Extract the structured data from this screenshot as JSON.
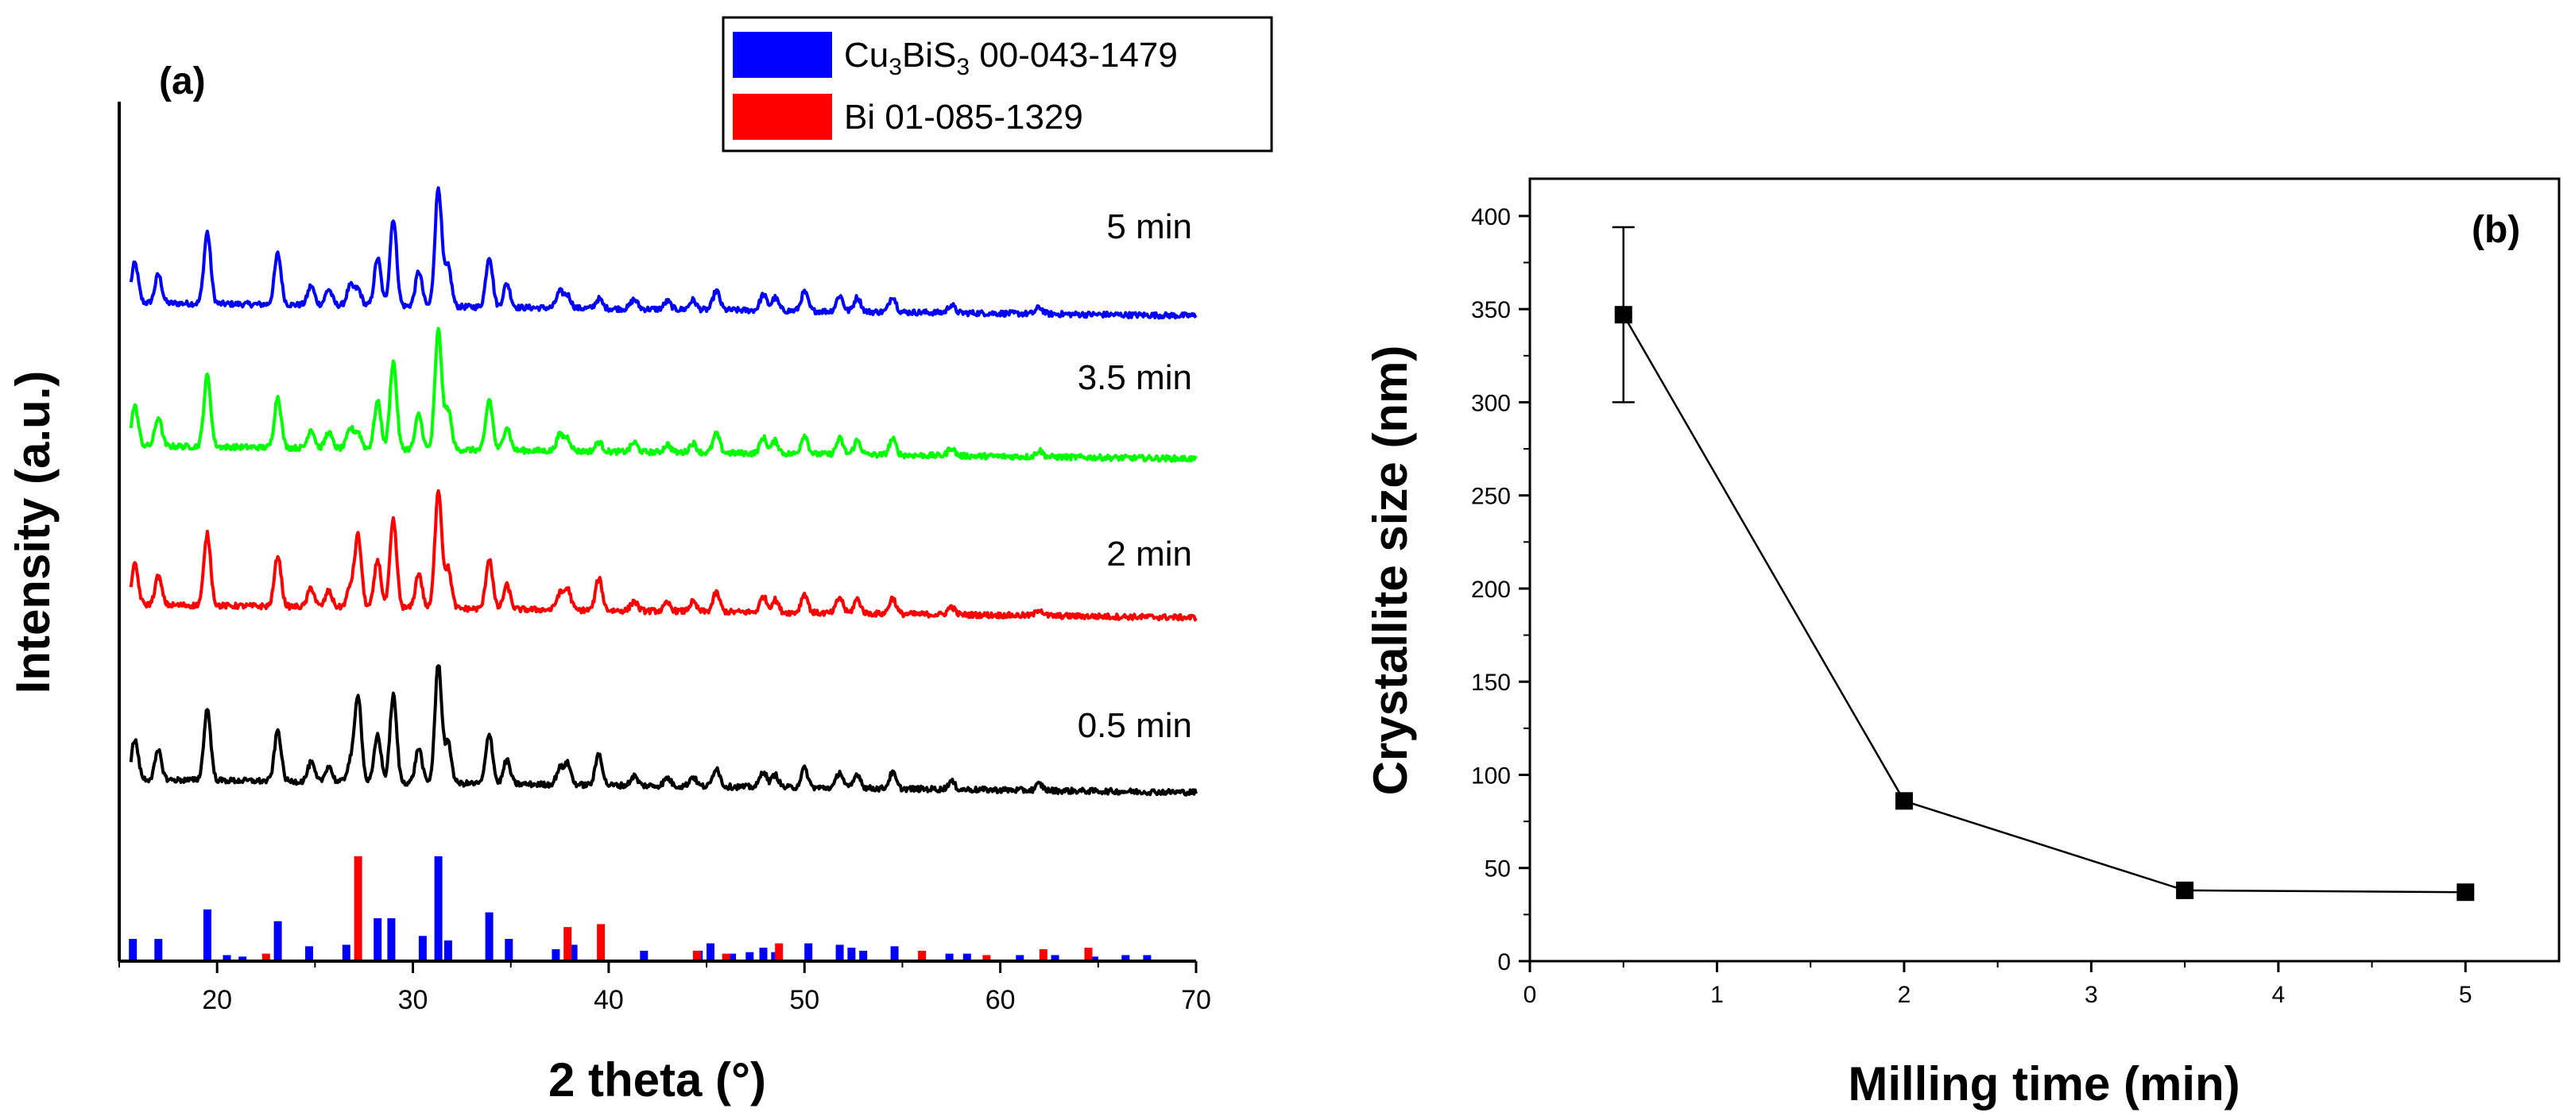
{
  "chart_data": [
    {
      "type": "line",
      "panel_label": "(a)",
      "xlabel": "2 theta (°)",
      "ylabel": "Intensity (a.u.)",
      "xlim": [
        15,
        70
      ],
      "xticks": [
        "20",
        "30",
        "40",
        "50",
        "60",
        "70"
      ],
      "series": [
        {
          "name": "5 min",
          "color": "#0000ff",
          "offset": 3.0
        },
        {
          "name": "3.5 min",
          "color": "#00ff00",
          "offset": 2.1
        },
        {
          "name": "2 min",
          "color": "#ff0000",
          "offset": 1.1
        },
        {
          "name": "0.5 min",
          "color": "#000000",
          "offset": 0.0
        }
      ],
      "peaks": [
        [
          15.8,
          0.25
        ],
        [
          17.0,
          0.18
        ],
        [
          19.5,
          0.45
        ],
        [
          23.1,
          0.32
        ],
        [
          24.8,
          0.12
        ],
        [
          25.7,
          0.1
        ],
        [
          26.8,
          0.12
        ],
        [
          27.2,
          0.55
        ],
        [
          28.2,
          0.3
        ],
        [
          29.0,
          0.55
        ],
        [
          30.3,
          0.22
        ],
        [
          31.3,
          0.75
        ],
        [
          31.8,
          0.25
        ],
        [
          33.9,
          0.32
        ],
        [
          34.8,
          0.15
        ],
        [
          37.5,
          0.1
        ],
        [
          37.9,
          0.13
        ],
        [
          39.5,
          0.2
        ],
        [
          41.3,
          0.06
        ],
        [
          43.0,
          0.05
        ],
        [
          44.3,
          0.06
        ],
        [
          45.5,
          0.12
        ],
        [
          47.9,
          0.1
        ],
        [
          48.5,
          0.08
        ],
        [
          50.0,
          0.12
        ],
        [
          51.8,
          0.1
        ],
        [
          52.7,
          0.09
        ],
        [
          54.5,
          0.1
        ],
        [
          57.5,
          0.05
        ],
        [
          62.0,
          0.04
        ]
      ],
      "reference_patterns": [
        {
          "name": "Cu3BiS3 00-043-1479",
          "color": "#0000ff",
          "sticks": [
            [
              15.7,
              14
            ],
            [
              17.0,
              14
            ],
            [
              19.5,
              34
            ],
            [
              20.5,
              3
            ],
            [
              21.3,
              2
            ],
            [
              23.1,
              26
            ],
            [
              24.7,
              9
            ],
            [
              26.6,
              10
            ],
            [
              28.2,
              28
            ],
            [
              28.9,
              28
            ],
            [
              30.5,
              16
            ],
            [
              31.3,
              70
            ],
            [
              31.8,
              13
            ],
            [
              33.9,
              32
            ],
            [
              34.9,
              14
            ],
            [
              37.3,
              7
            ],
            [
              38.2,
              10
            ],
            [
              41.8,
              6
            ],
            [
              44.6,
              6
            ],
            [
              45.2,
              11
            ],
            [
              46.3,
              4
            ],
            [
              47.2,
              5
            ],
            [
              47.9,
              8
            ],
            [
              48.5,
              5
            ],
            [
              50.2,
              11
            ],
            [
              51.8,
              10
            ],
            [
              52.4,
              8
            ],
            [
              53.0,
              6
            ],
            [
              54.6,
              9
            ],
            [
              57.4,
              4
            ],
            [
              58.3,
              4
            ],
            [
              61.0,
              3
            ],
            [
              62.8,
              3
            ],
            [
              64.8,
              2
            ],
            [
              66.4,
              3
            ],
            [
              67.5,
              3
            ]
          ]
        },
        {
          "name": "Bi 01-085-1329",
          "color": "#ff0000",
          "sticks": [
            [
              22.5,
              4
            ],
            [
              27.2,
              70
            ],
            [
              37.9,
              22
            ],
            [
              39.6,
              24
            ],
            [
              44.5,
              6
            ],
            [
              46.0,
              4
            ],
            [
              48.7,
              11
            ],
            [
              56.0,
              6
            ],
            [
              59.3,
              3
            ],
            [
              62.2,
              7
            ],
            [
              64.5,
              8
            ]
          ]
        }
      ],
      "legend": [
        {
          "label_main": "Cu",
          "sub1": "3",
          "mid": "BiS",
          "sub2": "3",
          "rest": " 00-043-1479",
          "color": "#0000ff"
        },
        {
          "label_main": "Bi 01-085-1329",
          "color": "#ff0000"
        }
      ]
    },
    {
      "type": "line",
      "panel_label": "(b)",
      "xlabel": "Milling time (min)",
      "ylabel": "Crystallite size (nm)",
      "xlim": [
        0,
        5.5
      ],
      "ylim": [
        0,
        420
      ],
      "xticks": [
        "0",
        "1",
        "2",
        "3",
        "4",
        "5"
      ],
      "yticks": [
        "0",
        "50",
        "100",
        "150",
        "200",
        "250",
        "300",
        "350",
        "400"
      ],
      "x": [
        0.5,
        2,
        3.5,
        5
      ],
      "y": [
        347,
        86,
        38,
        37
      ],
      "error": [
        47,
        0,
        0,
        0
      ]
    }
  ]
}
